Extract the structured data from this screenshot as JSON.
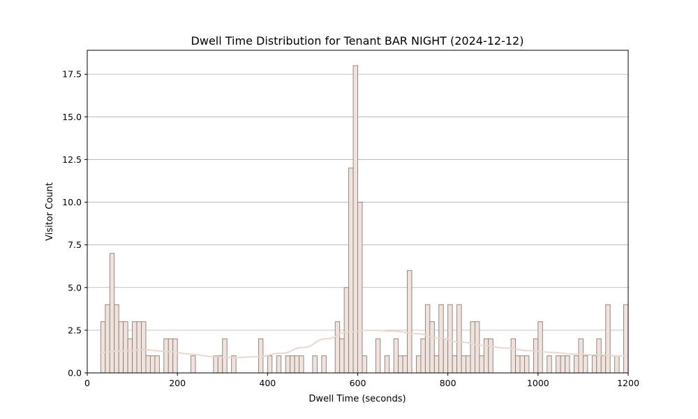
{
  "chart_data": {
    "type": "bar",
    "title": "Dwell Time Distribution for Tenant BAR NIGHT (2024-12-12)",
    "xlabel": "Dwell Time (seconds)",
    "ylabel": "Visitor Count",
    "xlim": [
      0,
      1200
    ],
    "ylim": [
      0,
      18.9
    ],
    "xticks": [
      0,
      200,
      400,
      600,
      800,
      1000,
      1200
    ],
    "xtick_labels": [
      "0",
      "200",
      "400",
      "600",
      "800",
      "1000",
      "1200"
    ],
    "yticks": [
      0,
      2.5,
      5,
      7.5,
      10,
      12.5,
      15,
      17.5
    ],
    "ytick_labels": [
      "0.0",
      "2.5",
      "5.0",
      "7.5",
      "10.0",
      "12.5",
      "15.0",
      "17.5"
    ],
    "grid": "y",
    "bin_width": 10,
    "bars": [
      {
        "x": 30,
        "count": 3
      },
      {
        "x": 40,
        "count": 4
      },
      {
        "x": 50,
        "count": 7
      },
      {
        "x": 60,
        "count": 4
      },
      {
        "x": 70,
        "count": 3
      },
      {
        "x": 80,
        "count": 3
      },
      {
        "x": 90,
        "count": 2
      },
      {
        "x": 100,
        "count": 3
      },
      {
        "x": 110,
        "count": 3
      },
      {
        "x": 120,
        "count": 3
      },
      {
        "x": 130,
        "count": 1
      },
      {
        "x": 140,
        "count": 1
      },
      {
        "x": 150,
        "count": 1
      },
      {
        "x": 170,
        "count": 2
      },
      {
        "x": 180,
        "count": 2
      },
      {
        "x": 190,
        "count": 2
      },
      {
        "x": 230,
        "count": 1
      },
      {
        "x": 280,
        "count": 1
      },
      {
        "x": 290,
        "count": 1
      },
      {
        "x": 300,
        "count": 2
      },
      {
        "x": 320,
        "count": 1
      },
      {
        "x": 380,
        "count": 2
      },
      {
        "x": 400,
        "count": 1
      },
      {
        "x": 420,
        "count": 1
      },
      {
        "x": 440,
        "count": 1
      },
      {
        "x": 450,
        "count": 1
      },
      {
        "x": 460,
        "count": 1
      },
      {
        "x": 470,
        "count": 1
      },
      {
        "x": 500,
        "count": 1
      },
      {
        "x": 520,
        "count": 1
      },
      {
        "x": 550,
        "count": 3
      },
      {
        "x": 560,
        "count": 2
      },
      {
        "x": 570,
        "count": 5
      },
      {
        "x": 580,
        "count": 12
      },
      {
        "x": 590,
        "count": 18
      },
      {
        "x": 600,
        "count": 10
      },
      {
        "x": 610,
        "count": 1
      },
      {
        "x": 640,
        "count": 2
      },
      {
        "x": 660,
        "count": 1
      },
      {
        "x": 680,
        "count": 2
      },
      {
        "x": 690,
        "count": 1
      },
      {
        "x": 700,
        "count": 1
      },
      {
        "x": 710,
        "count": 6
      },
      {
        "x": 730,
        "count": 1
      },
      {
        "x": 740,
        "count": 2
      },
      {
        "x": 750,
        "count": 4
      },
      {
        "x": 760,
        "count": 3
      },
      {
        "x": 770,
        "count": 1
      },
      {
        "x": 780,
        "count": 4
      },
      {
        "x": 790,
        "count": 2
      },
      {
        "x": 800,
        "count": 4
      },
      {
        "x": 810,
        "count": 1
      },
      {
        "x": 820,
        "count": 4
      },
      {
        "x": 830,
        "count": 1
      },
      {
        "x": 840,
        "count": 1
      },
      {
        "x": 850,
        "count": 3
      },
      {
        "x": 860,
        "count": 3
      },
      {
        "x": 870,
        "count": 1
      },
      {
        "x": 880,
        "count": 2
      },
      {
        "x": 890,
        "count": 2
      },
      {
        "x": 940,
        "count": 2
      },
      {
        "x": 950,
        "count": 1
      },
      {
        "x": 960,
        "count": 1
      },
      {
        "x": 970,
        "count": 1
      },
      {
        "x": 990,
        "count": 2
      },
      {
        "x": 1000,
        "count": 3
      },
      {
        "x": 1020,
        "count": 1
      },
      {
        "x": 1040,
        "count": 1
      },
      {
        "x": 1050,
        "count": 1
      },
      {
        "x": 1060,
        "count": 1
      },
      {
        "x": 1080,
        "count": 1
      },
      {
        "x": 1090,
        "count": 2
      },
      {
        "x": 1100,
        "count": 1
      },
      {
        "x": 1120,
        "count": 1
      },
      {
        "x": 1130,
        "count": 2
      },
      {
        "x": 1140,
        "count": 1
      },
      {
        "x": 1150,
        "count": 4
      },
      {
        "x": 1170,
        "count": 1
      },
      {
        "x": 1190,
        "count": 4
      }
    ],
    "kde_curve": {
      "x": [
        30,
        80,
        130,
        180,
        230,
        280,
        330,
        380,
        430,
        480,
        530,
        580,
        630,
        680,
        730,
        780,
        830,
        880,
        930,
        980,
        1030,
        1080,
        1130,
        1180,
        1200
      ],
      "y": [
        1.2,
        1.3,
        1.35,
        1.25,
        1.1,
        0.95,
        0.9,
        0.95,
        1.15,
        1.5,
        2.0,
        2.4,
        2.5,
        2.45,
        2.3,
        2.05,
        1.8,
        1.6,
        1.45,
        1.3,
        1.2,
        1.1,
        1.05,
        1.0,
        1.0
      ]
    },
    "colors": {
      "bar_fill": "#f0e3dd",
      "bar_edge": "#8a7d78",
      "kde_line": "#e8d8cf",
      "grid": "#b0b0b0"
    }
  }
}
